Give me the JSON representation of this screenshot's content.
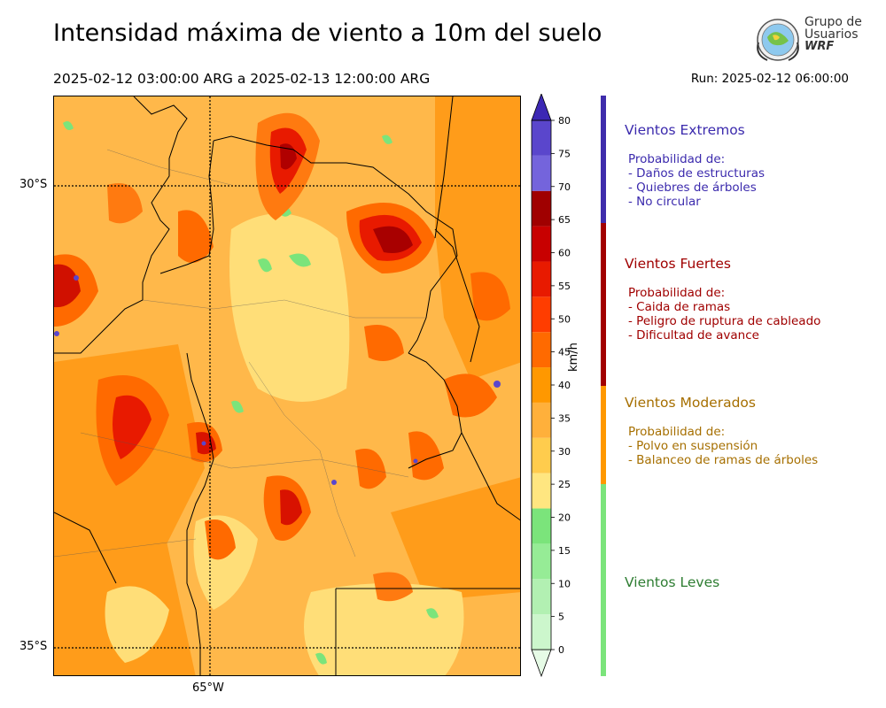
{
  "header": {
    "title": "Intensidad máxima de viento a 10m del suelo",
    "period": "2025-02-12 03:00:00 ARG  a  2025-02-13 12:00:00 ARG",
    "run": "Run: 2025-02-12 06:00:00"
  },
  "logo": {
    "line1": "Grupo de",
    "line2": "Usuarios",
    "line3": "WRF",
    "icon": "globe-logo-icon"
  },
  "map": {
    "lat_labels": [
      "30°S",
      "35°S"
    ],
    "lon_labels": [
      "65°W"
    ]
  },
  "colorbar": {
    "unit": "km/h",
    "ticks": [
      "0",
      "5",
      "10",
      "15",
      "20",
      "25",
      "30",
      "35",
      "40",
      "45",
      "50",
      "55",
      "60",
      "65",
      "70",
      "75",
      "80"
    ],
    "colors": [
      "#e6fbe6",
      "#ccf6cc",
      "#b2f0b2",
      "#96ec96",
      "#7be47b",
      "#ffe680",
      "#ffcc4d",
      "#ffb03b",
      "#ff9800",
      "#ff6a00",
      "#ff3d00",
      "#e81a00",
      "#c80000",
      "#a00000",
      "#7464dc",
      "#5a46cc",
      "#3c28b4"
    ]
  },
  "categories": [
    {
      "name": "Vientos Extremos",
      "color": "#3b2aad",
      "bar_color": "#3f2dab",
      "lines": [
        "Probabilidad de:",
        "- Daños de estructuras",
        "- Quiebres de árboles",
        "- No circular"
      ]
    },
    {
      "name": "Vientos Fuertes",
      "color": "#a00000",
      "bar_color": "#a20000",
      "lines": [
        "Probabilidad de:",
        "- Caida de ramas",
        "- Peligro de ruptura de cableado",
        "- Dificultad de avance"
      ]
    },
    {
      "name": "Vientos Moderados",
      "color": "#a66f00",
      "bar_color": "#ff9800",
      "lines": [
        "Probabilidad de:",
        "- Polvo en suspensión",
        "- Balanceo de ramas de árboles"
      ]
    },
    {
      "name": "Vientos Leves",
      "color": "#2e7d32",
      "bar_color": "#7be47b",
      "lines": []
    }
  ]
}
